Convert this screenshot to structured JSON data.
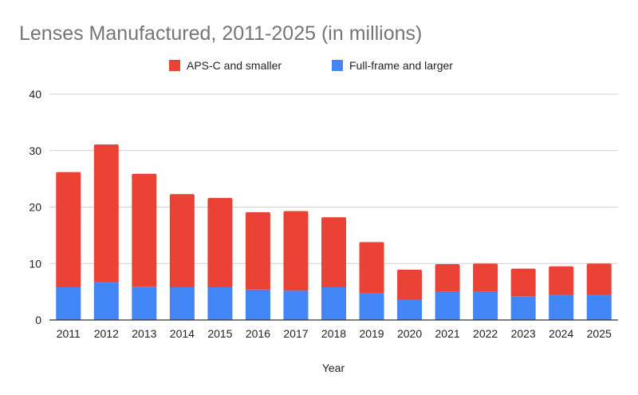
{
  "chart_data": {
    "type": "bar",
    "stacked": true,
    "title": "Lenses Manufactured, 2011-2025 (in millions)",
    "xlabel": "Year",
    "ylabel": "",
    "ylim": [
      0,
      40
    ],
    "yticks": [
      0,
      10,
      20,
      30,
      40
    ],
    "grid": true,
    "legend_position": "top",
    "categories": [
      "2011",
      "2012",
      "2013",
      "2014",
      "2015",
      "2016",
      "2017",
      "2018",
      "2019",
      "2020",
      "2021",
      "2022",
      "2023",
      "2024",
      "2025"
    ],
    "series": [
      {
        "name": "Full-frame and larger",
        "color": "#4285f4",
        "values": [
          5.8,
          6.7,
          5.9,
          5.8,
          5.8,
          5.4,
          5.2,
          5.8,
          4.8,
          3.6,
          5.0,
          5.0,
          4.2,
          4.4,
          4.4
        ]
      },
      {
        "name": "APS-C and smaller",
        "color": "#ea4335",
        "values": [
          20.4,
          24.4,
          20.0,
          16.5,
          15.8,
          13.7,
          14.1,
          12.4,
          9.0,
          5.3,
          4.9,
          5.0,
          4.9,
          5.1,
          5.6
        ]
      }
    ],
    "legend_order": [
      "APS-C and smaller",
      "Full-frame and larger"
    ]
  }
}
